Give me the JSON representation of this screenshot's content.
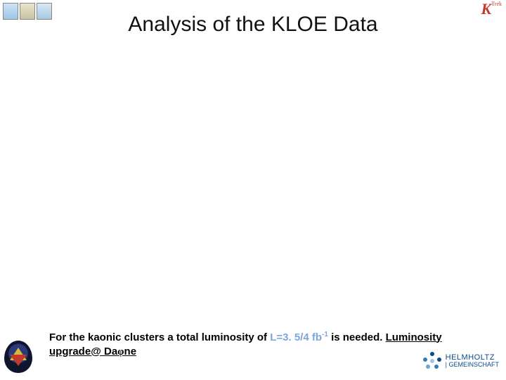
{
  "title": "Analysis of the KLOE Data",
  "topRightLogo": {
    "main": "K",
    "sub": "Trek"
  },
  "footer": {
    "pre": "For the kaonic clusters a total luminosity of ",
    "lum": "L=3. 5/4 fb",
    "exp": "-1",
    "mid": " is needed. ",
    "upgradePre": "Luminosity upgrade",
    "at": "@ ",
    "dafnePre": "Da",
    "phi": "φ",
    "dafnePost": "ne"
  },
  "helmholtz": {
    "line1": "HELMHOLTZ",
    "line2": "| GEMEINSCHAFT"
  },
  "colors": {
    "lumValue": "#7aa7d9",
    "helmBlue": "#0a4a8a",
    "kRed": "#c0392b"
  }
}
